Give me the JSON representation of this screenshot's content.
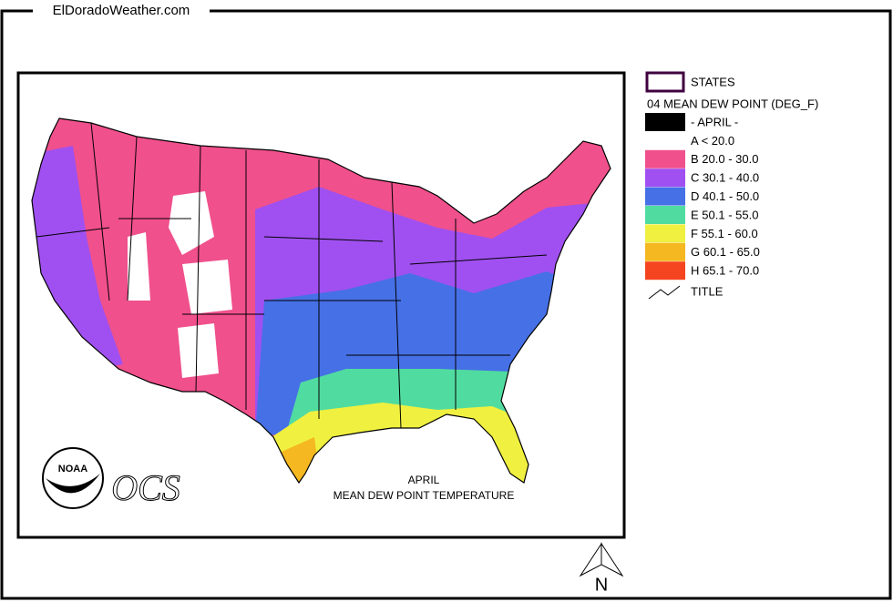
{
  "header": {
    "site": "ElDoradoWeather.com"
  },
  "legend": {
    "states": "STATES",
    "title": "04 MEAN DEW POINT (DEG_F)",
    "items": [
      {
        "label": "- APRIL -",
        "color": "#000000"
      },
      {
        "label": "A < 20.0",
        "color": "#ffffff"
      },
      {
        "label": "B 20.0 - 30.0",
        "color": "#f0508c"
      },
      {
        "label": "C 30.1 - 40.0",
        "color": "#a050f0"
      },
      {
        "label": "D 40.1 - 50.0",
        "color": "#4670e6"
      },
      {
        "label": "E 50.1 - 55.0",
        "color": "#50dca0"
      },
      {
        "label": "F 55.1 - 60.0",
        "color": "#f0f040"
      },
      {
        "label": "G 60.1 - 65.0",
        "color": "#f5b820"
      },
      {
        "label": "H 65.1 - 70.0",
        "color": "#f54520"
      }
    ],
    "title_item": "TITLE"
  },
  "map": {
    "title": "APRIL",
    "subtitle": "MEAN DEW POINT TEMPERATURE"
  },
  "logos": {
    "noaa": "NOAA",
    "ocs": "OCS"
  },
  "north": "N"
}
